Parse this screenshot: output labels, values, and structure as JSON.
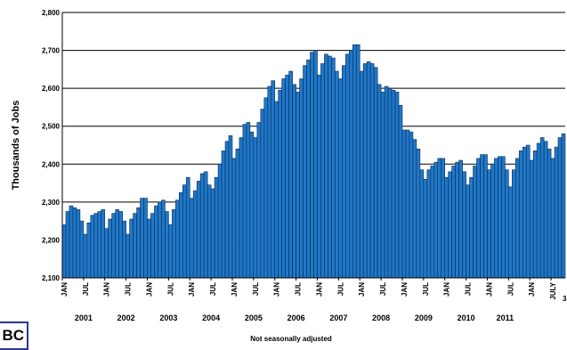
{
  "chart_data": {
    "type": "bar",
    "ylabel": "Thousands of Jobs",
    "ylim": [
      2100,
      2800
    ],
    "yticks": [
      "2,100",
      "2,200",
      "2,300",
      "2,400",
      "2,500",
      "2,600",
      "2,700",
      "2,800"
    ],
    "start": "2001-01",
    "month_tick_labels": [
      "JAN",
      "JUL"
    ],
    "last_tick_label": "JULY",
    "years": [
      "2001",
      "2002",
      "2003",
      "2004",
      "2005",
      "2006",
      "2007",
      "2008",
      "2009",
      "2010",
      "2011"
    ],
    "note": "Not seasonally adjusted",
    "bar_color": "#1f78c8",
    "values": [
      2240,
      2275,
      2290,
      2285,
      2280,
      2250,
      2215,
      2245,
      2265,
      2270,
      2275,
      2280,
      2230,
      2255,
      2270,
      2280,
      2275,
      2250,
      2215,
      2255,
      2270,
      2285,
      2310,
      2310,
      2255,
      2270,
      2290,
      2300,
      2305,
      2275,
      2240,
      2280,
      2305,
      2325,
      2345,
      2365,
      2310,
      2330,
      2355,
      2375,
      2380,
      2345,
      2335,
      2365,
      2400,
      2435,
      2460,
      2475,
      2415,
      2440,
      2470,
      2505,
      2510,
      2485,
      2470,
      2510,
      2545,
      2575,
      2605,
      2620,
      2565,
      2595,
      2625,
      2635,
      2645,
      2610,
      2590,
      2625,
      2660,
      2675,
      2695,
      2700,
      2635,
      2665,
      2690,
      2685,
      2680,
      2645,
      2625,
      2660,
      2690,
      2700,
      2715,
      2715,
      2645,
      2665,
      2670,
      2665,
      2655,
      2610,
      2590,
      2605,
      2600,
      2595,
      2590,
      2555,
      2490,
      2490,
      2485,
      2465,
      2440,
      2385,
      2360,
      2385,
      2395,
      2405,
      2415,
      2415,
      2365,
      2380,
      2395,
      2405,
      2410,
      2380,
      2345,
      2365,
      2395,
      2415,
      2425,
      2425,
      2385,
      2400,
      2415,
      2420,
      2420,
      2385,
      2340,
      2385,
      2415,
      2435,
      2445,
      2450,
      2410,
      2435,
      2455,
      2470,
      2460,
      2440,
      2415,
      2445,
      2470,
      2480
    ]
  },
  "logo_text": "BC",
  "page_number": "3"
}
